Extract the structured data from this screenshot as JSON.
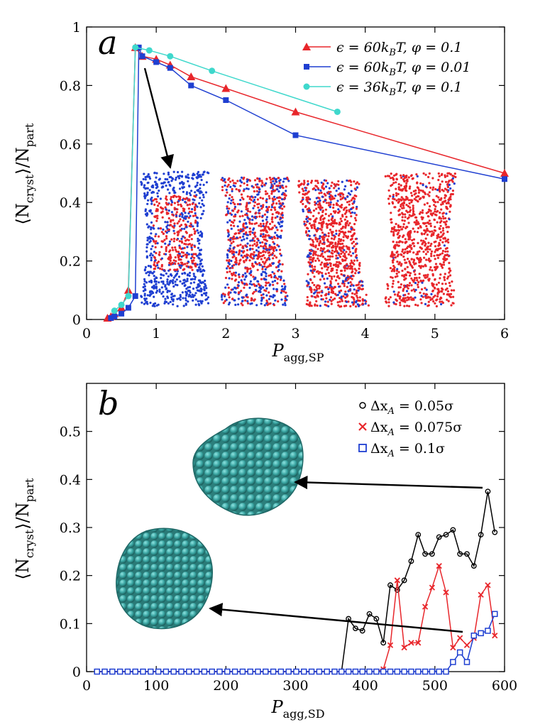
{
  "chart_data": [
    {
      "panel": "a",
      "type": "line",
      "xlabel": "P_agg,SP",
      "ylabel": "⟨N_cryst⟩/N_part",
      "xlim": [
        0,
        6
      ],
      "ylim": [
        0,
        1
      ],
      "xticks": [
        0,
        1,
        2,
        3,
        4,
        5,
        6
      ],
      "yticks": [
        0,
        0.2,
        0.4,
        0.6,
        0.8,
        1
      ],
      "xtick_labels": [
        "0",
        "1",
        "2",
        "3",
        "4",
        "5",
        "6"
      ],
      "ytick_labels": [
        "0",
        "0.2",
        "0.4",
        "0.6",
        "0.8",
        "1"
      ],
      "legend_position": "top-right",
      "series": [
        {
          "name": "ε = 60k_BT, φ = 0.1",
          "marker": "triangle",
          "color": "#e8262b",
          "x": [
            0.3,
            0.35,
            0.4,
            0.5,
            0.6,
            0.7,
            0.8,
            1.0,
            1.2,
            1.5,
            2.0,
            3.0,
            6.0
          ],
          "y": [
            0.005,
            0.01,
            0.02,
            0.04,
            0.1,
            0.93,
            0.9,
            0.89,
            0.87,
            0.83,
            0.79,
            0.71,
            0.5
          ]
        },
        {
          "name": "ε = 60k_BT, φ = 0.01",
          "marker": "square",
          "color": "#1f3fd1",
          "x": [
            0.35,
            0.4,
            0.5,
            0.6,
            0.7,
            0.75,
            0.8,
            1.0,
            1.2,
            1.5,
            2.0,
            3.0,
            6.0
          ],
          "y": [
            0.005,
            0.01,
            0.02,
            0.04,
            0.08,
            0.93,
            0.9,
            0.88,
            0.86,
            0.8,
            0.75,
            0.63,
            0.48
          ]
        },
        {
          "name": "ε = 36k_BT, φ = 0.1",
          "marker": "circle",
          "color": "#3fd8cc",
          "x": [
            0.4,
            0.5,
            0.6,
            0.7,
            0.9,
            1.2,
            1.8,
            3.6
          ],
          "y": [
            0.03,
            0.05,
            0.08,
            0.93,
            0.92,
            0.9,
            0.85,
            0.71
          ]
        }
      ]
    },
    {
      "panel": "b",
      "type": "line",
      "xlabel": "P_agg,SD",
      "ylabel": "⟨N_cryst⟩/N_part",
      "xlim": [
        0,
        600
      ],
      "ylim": [
        0,
        0.6
      ],
      "xticks": [
        0,
        100,
        200,
        300,
        400,
        500,
        600
      ],
      "yticks": [
        0,
        0.1,
        0.2,
        0.3,
        0.4,
        0.5
      ],
      "xtick_labels": [
        "0",
        "100",
        "200",
        "300",
        "400",
        "500",
        "600"
      ],
      "ytick_labels": [
        "0",
        "0.1",
        "0.2",
        "0.3",
        "0.4",
        "0.5"
      ],
      "legend_position": "top-right",
      "series": [
        {
          "name": "Δx_A = 0.05σ",
          "marker": "circle",
          "color": "#000000",
          "x": [
            15,
            26,
            37,
            48,
            59,
            70,
            81,
            92,
            103,
            114,
            125,
            136,
            147,
            158,
            169,
            180,
            191,
            202,
            213,
            224,
            235,
            246,
            257,
            268,
            279,
            290,
            301,
            312,
            323,
            334,
            345,
            356,
            366,
            376,
            386,
            396,
            406,
            416,
            426,
            436,
            446,
            456,
            466,
            476,
            486,
            496,
            506,
            516,
            526,
            536,
            546,
            556,
            566,
            576,
            586
          ],
          "y": [
            0,
            0,
            0,
            0,
            0,
            0,
            0,
            0,
            0,
            0,
            0,
            0,
            0,
            0,
            0,
            0,
            0,
            0,
            0,
            0,
            0,
            0,
            0,
            0,
            0,
            0,
            0,
            0,
            0,
            0,
            0,
            0,
            0,
            0.11,
            0.09,
            0.085,
            0.12,
            0.11,
            0.06,
            0.18,
            0.17,
            0.19,
            0.23,
            0.285,
            0.245,
            0.245,
            0.28,
            0.285,
            0.295,
            0.245,
            0.245,
            0.22,
            0.285,
            0.375,
            0.29
          ]
        },
        {
          "name": "Δx_A = 0.075σ",
          "marker": "x",
          "color": "#e8262b",
          "x": [
            15,
            26,
            37,
            48,
            59,
            70,
            81,
            92,
            103,
            114,
            125,
            136,
            147,
            158,
            169,
            180,
            191,
            202,
            213,
            224,
            235,
            246,
            257,
            268,
            279,
            290,
            301,
            312,
            323,
            334,
            345,
            356,
            366,
            376,
            386,
            396,
            406,
            416,
            426,
            436,
            446,
            456,
            466,
            476,
            486,
            496,
            506,
            516,
            526,
            536,
            546,
            556,
            566,
            576,
            586
          ],
          "y": [
            0,
            0,
            0,
            0,
            0,
            0,
            0,
            0,
            0,
            0,
            0,
            0,
            0,
            0,
            0,
            0,
            0,
            0,
            0,
            0,
            0,
            0,
            0,
            0,
            0,
            0,
            0,
            0,
            0,
            0,
            0,
            0,
            0,
            0,
            0,
            0,
            0,
            0,
            0.005,
            0.055,
            0.19,
            0.05,
            0.06,
            0.06,
            0.135,
            0.175,
            0.22,
            0.165,
            0.05,
            0.07,
            0.055,
            0.07,
            0.16,
            0.18,
            0.075
          ]
        },
        {
          "name": "Δx_A = 0.1σ",
          "marker": "open-square",
          "color": "#1f3fd1",
          "x": [
            15,
            26,
            37,
            48,
            59,
            70,
            81,
            92,
            103,
            114,
            125,
            136,
            147,
            158,
            169,
            180,
            191,
            202,
            213,
            224,
            235,
            246,
            257,
            268,
            279,
            290,
            301,
            312,
            323,
            334,
            345,
            356,
            366,
            376,
            386,
            396,
            406,
            416,
            426,
            436,
            446,
            456,
            466,
            476,
            486,
            496,
            506,
            516,
            526,
            536,
            546,
            556,
            566,
            576,
            586
          ],
          "y": [
            0,
            0,
            0,
            0,
            0,
            0,
            0,
            0,
            0,
            0,
            0,
            0,
            0,
            0,
            0,
            0,
            0,
            0,
            0,
            0,
            0,
            0,
            0,
            0,
            0,
            0,
            0,
            0,
            0,
            0,
            0,
            0,
            0,
            0,
            0,
            0,
            0,
            0,
            0,
            0,
            0,
            0,
            0,
            0,
            0,
            0,
            0,
            0,
            0.02,
            0.04,
            0.02,
            0.075,
            0.08,
            0.085,
            0.12
          ]
        }
      ]
    }
  ],
  "labels": {
    "panel_a": "a",
    "panel_b": "b",
    "ylabel_main": "⟨N",
    "ylabel_sub1": "cryst",
    "ylabel_mid": "⟩/N",
    "ylabel_sub2": "part",
    "xlabel_a_main": "P",
    "xlabel_a_sub": "agg,SP",
    "xlabel_b_main": "P",
    "xlabel_b_sub": "agg,SD"
  },
  "legend_a": [
    {
      "lhs": "ϵ = 60k",
      "sub": "B",
      "rhs": "T, φ = 0.1"
    },
    {
      "lhs": "ϵ = 60k",
      "sub": "B",
      "rhs": "T, φ = 0.01"
    },
    {
      "lhs": "ϵ = 36k",
      "sub": "B",
      "rhs": "T, φ = 0.1"
    }
  ],
  "legend_b": [
    {
      "lhs": "Δx",
      "sub": "A",
      "rhs": " = 0.05σ"
    },
    {
      "lhs": "Δx",
      "sub": "A",
      "rhs": " = 0.075σ"
    },
    {
      "lhs": "Δx",
      "sub": "A",
      "rhs": " = 0.1σ"
    }
  ],
  "colors": {
    "red": "#e8262b",
    "blue": "#1f3fd1",
    "cyan": "#3fd8cc",
    "teal_sphere": "#3aa6a3"
  }
}
